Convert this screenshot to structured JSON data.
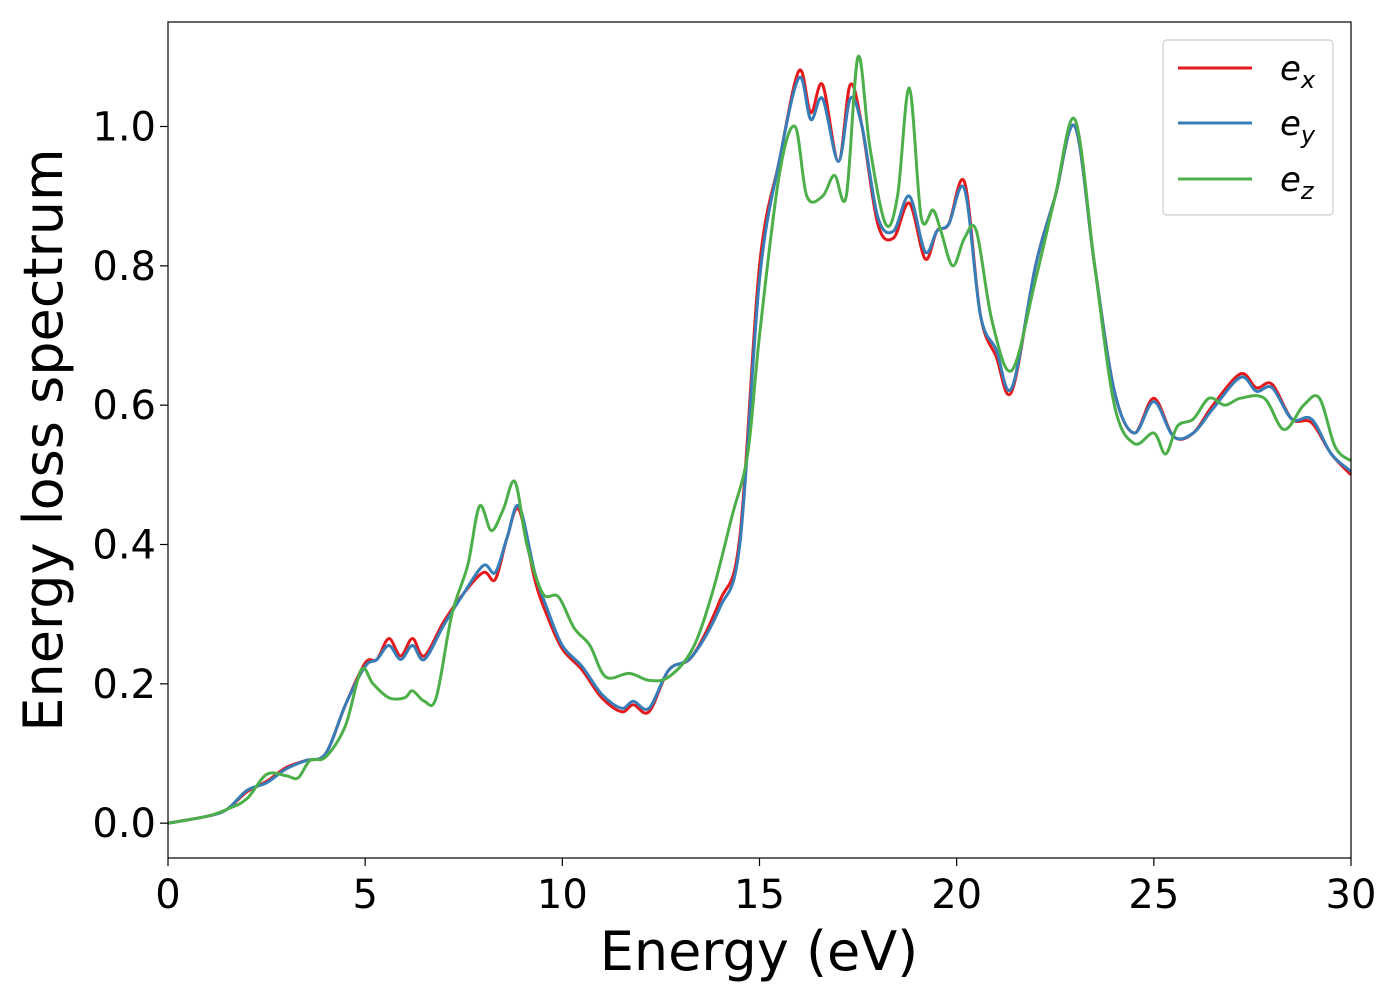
{
  "chart_data": {
    "type": "line",
    "xlabel": "Energy (eV)",
    "ylabel": "Energy loss spectrum",
    "xlim": [
      0,
      30
    ],
    "ylim": [
      -0.05,
      1.15
    ],
    "xticks": [
      0,
      5,
      10,
      15,
      20,
      25,
      30
    ],
    "xtick_labels": [
      "0",
      "5",
      "10",
      "15",
      "20",
      "25",
      "30"
    ],
    "yticks": [
      0.0,
      0.2,
      0.4,
      0.6,
      0.8,
      1.0
    ],
    "ytick_labels": [
      "0.0",
      "0.2",
      "0.4",
      "0.6",
      "0.8",
      "1.0"
    ],
    "grid": false,
    "legend_position": "top-right",
    "series": [
      {
        "name": "e",
        "subscript": "x",
        "color": "#e41a1c",
        "x": [
          0,
          1,
          1.5,
          2,
          2.5,
          3,
          3.5,
          4,
          4.5,
          5,
          5.3,
          5.6,
          5.9,
          6.2,
          6.5,
          7,
          7.5,
          8,
          8.3,
          8.6,
          8.9,
          9.3,
          9.6,
          10,
          10.5,
          11,
          11.5,
          11.8,
          12.2,
          12.7,
          13.3,
          14,
          14.5,
          15,
          15.5,
          16,
          16.3,
          16.6,
          17,
          17.3,
          17.6,
          18,
          18.4,
          18.8,
          19.2,
          19.5,
          19.8,
          20.2,
          20.6,
          21,
          21.4,
          22,
          22.5,
          23,
          23.5,
          24,
          24.5,
          25,
          25.5,
          26,
          26.5,
          27.2,
          27.6,
          28,
          28.5,
          29,
          29.5,
          30
        ],
        "values": [
          0.0,
          0.01,
          0.02,
          0.045,
          0.06,
          0.08,
          0.09,
          0.1,
          0.17,
          0.23,
          0.235,
          0.265,
          0.24,
          0.265,
          0.24,
          0.29,
          0.33,
          0.36,
          0.35,
          0.41,
          0.45,
          0.35,
          0.3,
          0.25,
          0.22,
          0.18,
          0.16,
          0.17,
          0.16,
          0.22,
          0.24,
          0.32,
          0.41,
          0.8,
          0.95,
          1.08,
          1.02,
          1.06,
          0.95,
          1.06,
          1.0,
          0.86,
          0.84,
          0.89,
          0.81,
          0.85,
          0.86,
          0.92,
          0.73,
          0.67,
          0.62,
          0.8,
          0.9,
          1.0,
          0.8,
          0.62,
          0.56,
          0.61,
          0.555,
          0.56,
          0.6,
          0.645,
          0.625,
          0.63,
          0.58,
          0.575,
          0.53,
          0.5
        ]
      },
      {
        "name": "e",
        "subscript": "y",
        "color": "#377eb8",
        "x": [
          0,
          1,
          1.5,
          2,
          2.5,
          3,
          3.5,
          4,
          4.5,
          5,
          5.3,
          5.6,
          5.9,
          6.2,
          6.5,
          7,
          7.5,
          8,
          8.3,
          8.6,
          8.9,
          9.3,
          9.6,
          10,
          10.5,
          11,
          11.5,
          11.8,
          12.2,
          12.7,
          13.3,
          14,
          14.5,
          15,
          15.5,
          16,
          16.3,
          16.6,
          17,
          17.3,
          17.6,
          18,
          18.4,
          18.8,
          19.2,
          19.5,
          19.8,
          20.2,
          20.6,
          21,
          21.4,
          22,
          22.5,
          23,
          23.5,
          24,
          24.5,
          25,
          25.5,
          26,
          26.5,
          27.2,
          27.6,
          28,
          28.5,
          29,
          29.5,
          30
        ],
        "values": [
          0.0,
          0.01,
          0.02,
          0.047,
          0.058,
          0.078,
          0.09,
          0.1,
          0.17,
          0.225,
          0.235,
          0.255,
          0.235,
          0.255,
          0.235,
          0.285,
          0.33,
          0.37,
          0.36,
          0.41,
          0.455,
          0.36,
          0.31,
          0.255,
          0.225,
          0.185,
          0.165,
          0.175,
          0.165,
          0.22,
          0.24,
          0.31,
          0.4,
          0.78,
          0.95,
          1.07,
          1.01,
          1.04,
          0.95,
          1.04,
          1.0,
          0.87,
          0.85,
          0.9,
          0.82,
          0.85,
          0.86,
          0.91,
          0.73,
          0.68,
          0.625,
          0.8,
          0.9,
          1.0,
          0.8,
          0.62,
          0.56,
          0.605,
          0.555,
          0.56,
          0.595,
          0.64,
          0.62,
          0.625,
          0.58,
          0.58,
          0.53,
          0.505
        ]
      },
      {
        "name": "e",
        "subscript": "z",
        "color": "#4daf4a",
        "x": [
          0,
          1,
          1.5,
          2,
          2.5,
          3,
          3.3,
          3.6,
          4,
          4.5,
          4.9,
          5.2,
          5.6,
          6,
          6.2,
          6.5,
          6.8,
          7.2,
          7.6,
          7.9,
          8.2,
          8.5,
          8.8,
          9.1,
          9.5,
          9.9,
          10.3,
          10.7,
          11.1,
          11.7,
          12.2,
          12.7,
          13.3,
          13.8,
          14.3,
          14.7,
          15,
          15.5,
          15.9,
          16.2,
          16.6,
          16.9,
          17.2,
          17.5,
          17.8,
          18.2,
          18.5,
          18.8,
          19.1,
          19.4,
          19.6,
          19.9,
          20.2,
          20.5,
          20.9,
          21.4,
          22,
          22.5,
          23,
          23.5,
          24,
          24.5,
          25,
          25.3,
          25.6,
          26,
          26.4,
          26.8,
          27.2,
          27.8,
          28.3,
          28.8,
          29.2,
          29.6,
          30
        ],
        "values": [
          0.0,
          0.01,
          0.02,
          0.035,
          0.07,
          0.068,
          0.065,
          0.09,
          0.095,
          0.14,
          0.22,
          0.2,
          0.18,
          0.18,
          0.19,
          0.175,
          0.18,
          0.3,
          0.37,
          0.455,
          0.42,
          0.45,
          0.49,
          0.4,
          0.33,
          0.325,
          0.28,
          0.255,
          0.21,
          0.215,
          0.205,
          0.21,
          0.25,
          0.33,
          0.44,
          0.53,
          0.7,
          0.93,
          1.0,
          0.9,
          0.9,
          0.93,
          0.9,
          1.1,
          0.97,
          0.86,
          0.9,
          1.055,
          0.87,
          0.88,
          0.85,
          0.8,
          0.84,
          0.85,
          0.72,
          0.65,
          0.78,
          0.9,
          1.01,
          0.8,
          0.6,
          0.545,
          0.56,
          0.53,
          0.57,
          0.58,
          0.61,
          0.6,
          0.61,
          0.61,
          0.565,
          0.6,
          0.61,
          0.54,
          0.52
        ]
      }
    ]
  }
}
